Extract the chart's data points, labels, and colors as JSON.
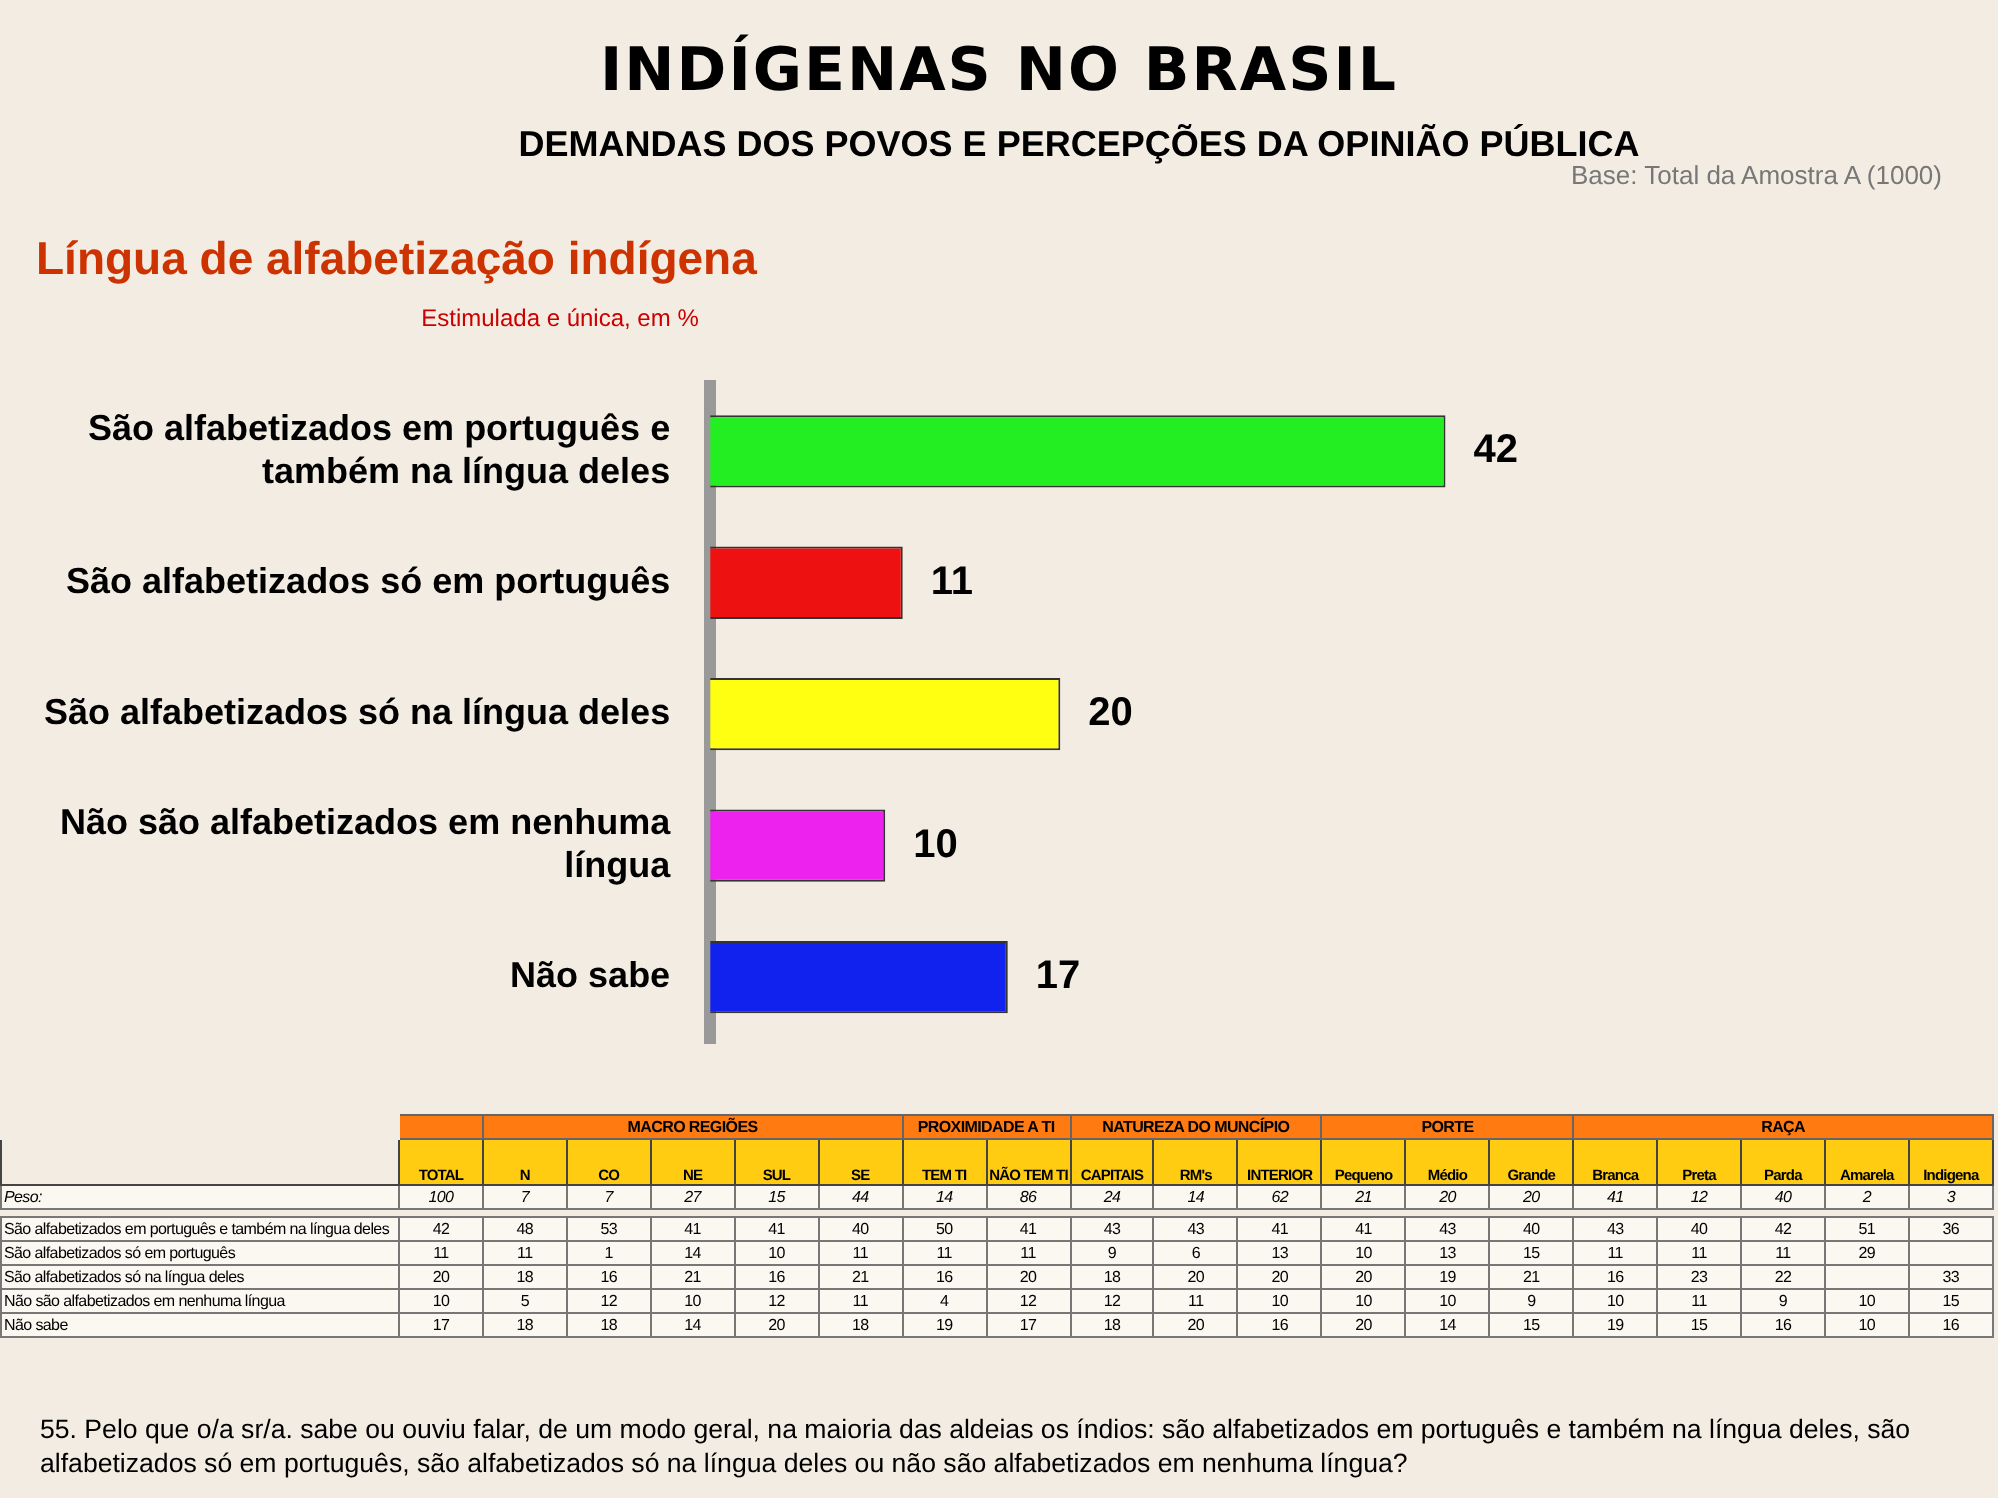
{
  "chart_data": [
    {
      "type": "bar",
      "orientation": "horizontal",
      "title": "INDÍGENAS NO BRASIL",
      "subtitle": "DEMANDAS DOS POVOS E PERCEPÇÕES DA OPINIÃO PÚBLICA",
      "annotations": [
        "Língua de alfabetização indígena",
        "Estimulada e única, em %",
        "Base: Total da Amostra A (1000)"
      ],
      "categories": [
        "São alfabetizados em português e também na língua deles",
        "São alfabetizados só em português",
        "São alfabetizados só na língua deles",
        "Não são alfabetizados em nenhuma língua",
        "Não sabe"
      ],
      "values": [
        42,
        11,
        20,
        10,
        17
      ],
      "colors": [
        "#22ee22",
        "#ee1111",
        "#ffff11",
        "#ee22ee",
        "#1122ee"
      ],
      "data_labels": true,
      "tick_labels": "y",
      "legend": false
    },
    {
      "type": "heatmap",
      "categories": [
        "TOTAL",
        "N",
        "CO",
        "NE",
        "SUL",
        "SE",
        "TEM TI",
        "NÃO TEM TI",
        "CAPITAIS",
        "RM's",
        "INTERIOR",
        "Pequeno",
        "Médio",
        "Grande",
        "Branca",
        "Preta",
        "Parda",
        "Amarela",
        "Indigena"
      ],
      "y_categories": [
        "Peso:",
        "São alfabetizados em português e também na língua deles",
        "São alfabetizados só em português",
        "São alfabetizados só na língua deles",
        "Não são alfabetizados em nenhuma língua",
        "Não sabe"
      ],
      "cells": [
        [
          100,
          7,
          7,
          27,
          15,
          44,
          14,
          86,
          24,
          14,
          62,
          21,
          20,
          20,
          41,
          12,
          40,
          2,
          3
        ],
        [
          42,
          48,
          53,
          41,
          41,
          40,
          50,
          41,
          43,
          43,
          41,
          41,
          43,
          40,
          43,
          40,
          42,
          51,
          36
        ],
        [
          11,
          11,
          1,
          14,
          10,
          11,
          11,
          11,
          9,
          6,
          13,
          10,
          13,
          15,
          11,
          11,
          11,
          29,
          null
        ],
        [
          20,
          18,
          16,
          21,
          16,
          21,
          16,
          20,
          18,
          20,
          20,
          20,
          19,
          21,
          16,
          23,
          22,
          null,
          33
        ],
        [
          10,
          5,
          12,
          10,
          12,
          11,
          4,
          12,
          12,
          11,
          10,
          10,
          10,
          9,
          10,
          11,
          9,
          10,
          15
        ],
        [
          17,
          18,
          18,
          14,
          20,
          18,
          19,
          17,
          18,
          20,
          16,
          20,
          14,
          15,
          19,
          15,
          16,
          10,
          16
        ]
      ],
      "data_labels": true,
      "annotations": [
        "MACRO REGIÕES",
        "PROXIMIDADE A TI",
        "NATUREZA DO MUNCÍPIO",
        "PORTE",
        "RAÇA",
        "55. Pelo que o/a sr/a. sabe ou ouviu falar, de um modo geral, na maioria das aldeias os índios: são alfabetizados em português e também na língua deles, são alfabetizados só em português, são alfabetizados só na língua deles ou não são alfabetizados em nenhuma língua?"
      ]
    }
  ]
}
